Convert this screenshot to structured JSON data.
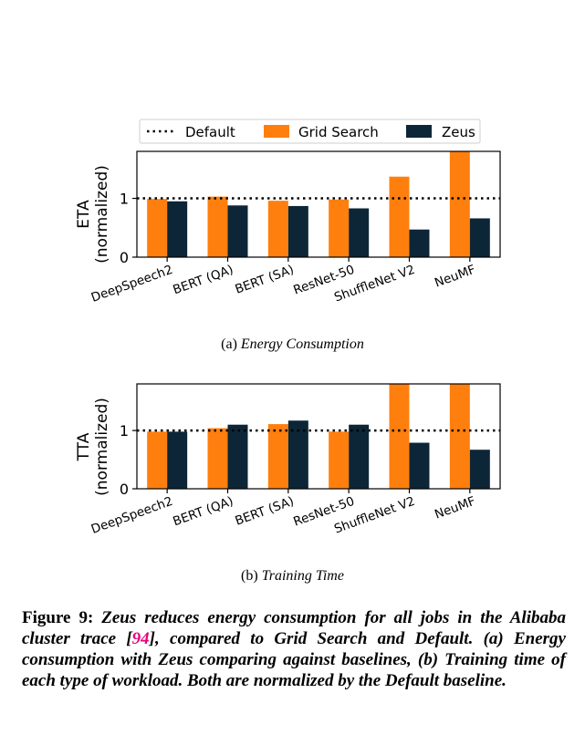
{
  "legend": {
    "default": "Default",
    "grid": "Grid Search",
    "zeus": "Zeus"
  },
  "colors": {
    "grid": "#ff7f0e",
    "zeus": "#0c2637",
    "default_line": "#000000",
    "ref": "#e6007e"
  },
  "chart_data": [
    {
      "type": "bar",
      "ylabel_line1": "ETA",
      "ylabel_line2": "(normalized)",
      "categories": [
        "DeepSpeech2",
        "BERT (QA)",
        "BERT (SA)",
        "ResNet-50",
        "ShuffleNet V2",
        "NeuMF"
      ],
      "series": [
        {
          "name": "Grid Search",
          "values": [
            0.99,
            1.03,
            0.96,
            0.98,
            1.37,
            1.8
          ]
        },
        {
          "name": "Zeus",
          "values": [
            0.95,
            0.88,
            0.87,
            0.83,
            0.47,
            0.66
          ]
        }
      ],
      "reference_line": {
        "name": "Default",
        "value": 1
      },
      "yticks": [
        0,
        1
      ],
      "ylim": [
        0,
        1.8
      ],
      "grid": false,
      "legend_position": "top"
    },
    {
      "type": "bar",
      "ylabel_line1": "TTA",
      "ylabel_line2": "(normalized)",
      "categories": [
        "DeepSpeech2",
        "BERT (QA)",
        "BERT (SA)",
        "ResNet-50",
        "ShuffleNet V2",
        "NeuMF"
      ],
      "series": [
        {
          "name": "Grid Search",
          "values": [
            0.98,
            1.04,
            1.11,
            0.98,
            1.8,
            1.8
          ]
        },
        {
          "name": "Zeus",
          "values": [
            0.98,
            1.1,
            1.17,
            1.1,
            0.79,
            0.67
          ]
        }
      ],
      "reference_line": {
        "name": "Default",
        "value": 1
      },
      "yticks": [
        0,
        1
      ],
      "ylim": [
        0,
        1.8
      ],
      "grid": false
    }
  ],
  "subcaption_a": {
    "label": "(a) ",
    "title": "Energy Consumption"
  },
  "subcaption_b": {
    "label": "(b) ",
    "title": "Training Time"
  },
  "caption": {
    "lead": "Figure 9: ",
    "text1": "Zeus reduces energy consumption for all jobs in the Alibaba cluster trace [",
    "ref": "94",
    "text2": "], compared to Grid Search and Default. (a) Energy consumption with Zeus comparing against baselines, (b) Training time of each type of workload. Both are normalized by the Default baseline."
  }
}
